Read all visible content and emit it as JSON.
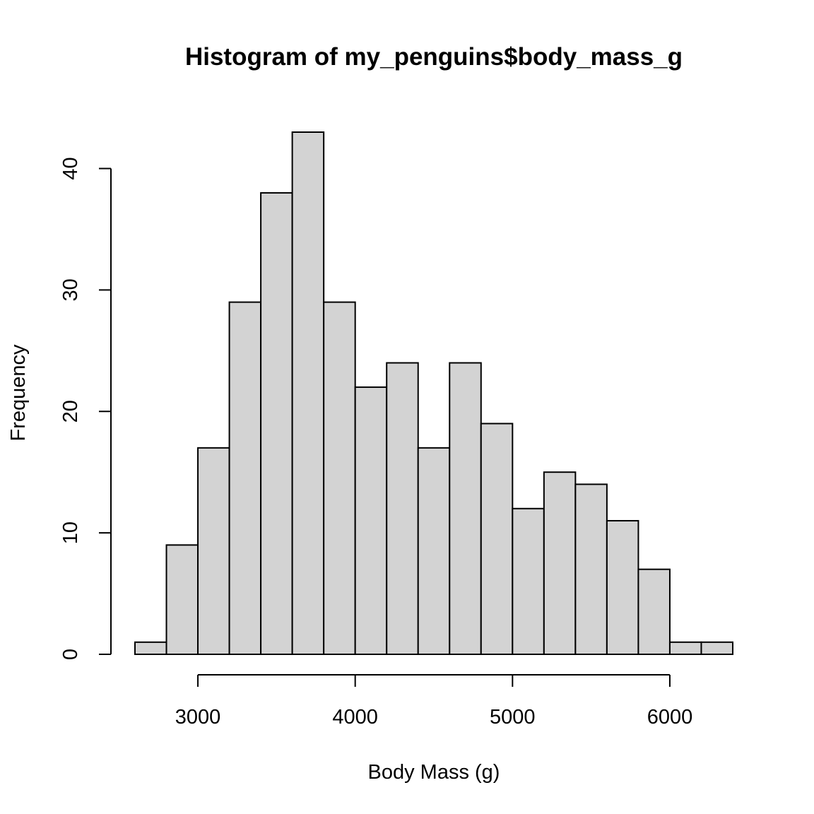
{
  "chart_data": {
    "type": "bar",
    "title": "Histogram of my_penguins$body_mass_g",
    "xlabel": "Body Mass (g)",
    "ylabel": "Frequency",
    "bins": [
      {
        "from": 2600,
        "to": 2800,
        "count": 1
      },
      {
        "from": 2800,
        "to": 3000,
        "count": 9
      },
      {
        "from": 3000,
        "to": 3200,
        "count": 17
      },
      {
        "from": 3200,
        "to": 3400,
        "count": 29
      },
      {
        "from": 3400,
        "to": 3600,
        "count": 38
      },
      {
        "from": 3600,
        "to": 3800,
        "count": 43
      },
      {
        "from": 3800,
        "to": 4000,
        "count": 29
      },
      {
        "from": 4000,
        "to": 4200,
        "count": 22
      },
      {
        "from": 4200,
        "to": 4400,
        "count": 24
      },
      {
        "from": 4400,
        "to": 4600,
        "count": 17
      },
      {
        "from": 4600,
        "to": 4800,
        "count": 24
      },
      {
        "from": 4800,
        "to": 5000,
        "count": 19
      },
      {
        "from": 5000,
        "to": 5200,
        "count": 12
      },
      {
        "from": 5200,
        "to": 5400,
        "count": 15
      },
      {
        "from": 5400,
        "to": 5600,
        "count": 14
      },
      {
        "from": 5600,
        "to": 5800,
        "count": 11
      },
      {
        "from": 5800,
        "to": 6000,
        "count": 7
      },
      {
        "from": 6000,
        "to": 6200,
        "count": 1
      },
      {
        "from": 6200,
        "to": 6400,
        "count": 1
      }
    ],
    "xticks": [
      3000,
      4000,
      5000,
      6000
    ],
    "xtick_labels": [
      "3000",
      "4000",
      "5000",
      "6000"
    ],
    "yticks": [
      0,
      10,
      20,
      30,
      40
    ],
    "ytick_labels": [
      "0",
      "10",
      "20",
      "30",
      "40"
    ],
    "xlim": [
      2600,
      6400
    ],
    "ylim": [
      0,
      43
    ],
    "bar_color": "#d3d3d3",
    "grid": false,
    "legend": "none"
  }
}
